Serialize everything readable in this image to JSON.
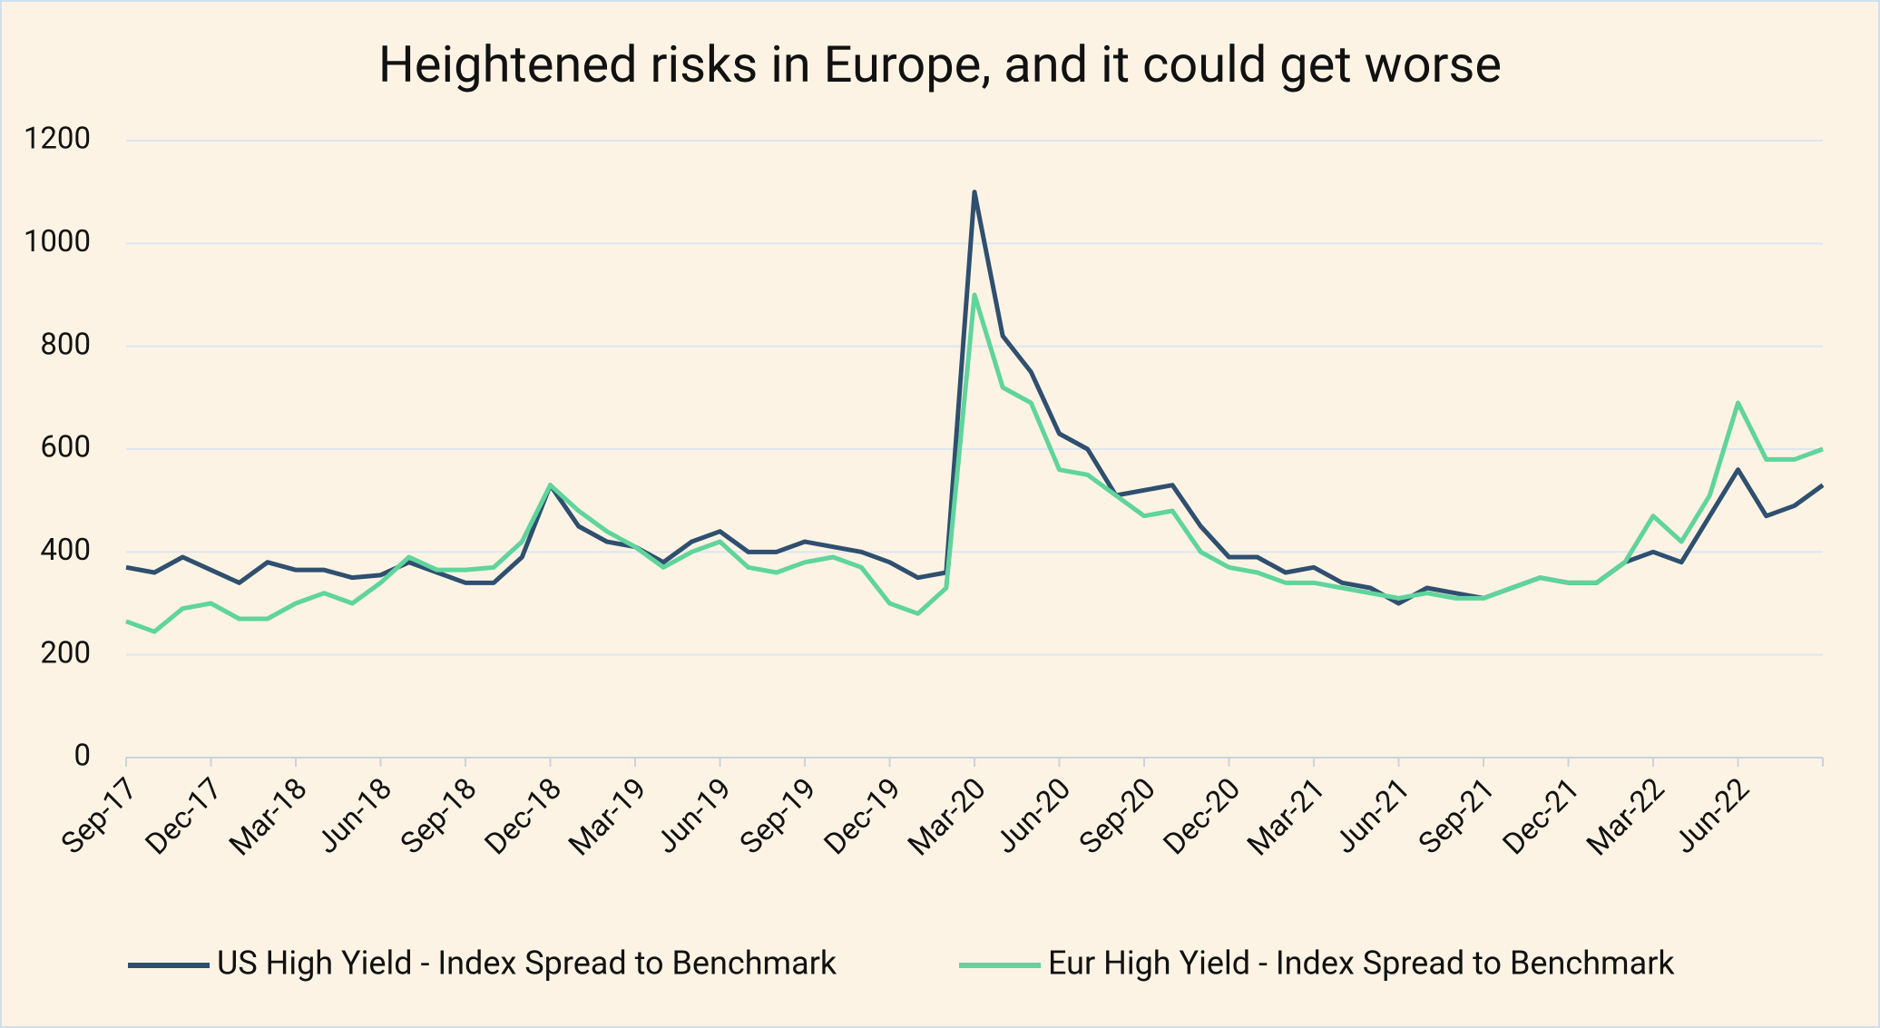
{
  "chart_data": {
    "type": "line",
    "title": "Heightened risks in Europe, and it could get worse",
    "categories": [
      "Sep-17",
      null,
      null,
      "Dec-17",
      null,
      null,
      "Mar-18",
      null,
      null,
      "Jun-18",
      null,
      null,
      "Sep-18",
      null,
      null,
      "Dec-18",
      null,
      null,
      "Mar-19",
      null,
      null,
      "Jun-19",
      null,
      null,
      "Sep-19",
      null,
      null,
      "Dec-19",
      null,
      null,
      "Mar-20",
      null,
      null,
      "Jun-20",
      null,
      null,
      "Sep-20",
      null,
      null,
      "Dec-20",
      null,
      null,
      "Mar-21",
      null,
      null,
      "Jun-21",
      null,
      null,
      "Sep-21",
      null,
      null,
      "Dec-21",
      null,
      null,
      "Mar-22",
      null,
      null,
      "Jun-22",
      null,
      null,
      null
    ],
    "series": [
      {
        "name": "US High Yield - Index Spread to Benchmark",
        "color": "#2f4f6f",
        "values": [
          370,
          360,
          390,
          365,
          340,
          380,
          365,
          365,
          350,
          355,
          380,
          360,
          340,
          340,
          390,
          530,
          450,
          420,
          410,
          380,
          420,
          440,
          400,
          400,
          420,
          410,
          400,
          380,
          350,
          360,
          1100,
          820,
          750,
          630,
          600,
          510,
          520,
          530,
          450,
          390,
          390,
          360,
          370,
          340,
          330,
          300,
          330,
          320,
          310,
          330,
          350,
          340,
          340,
          380,
          400,
          380,
          470,
          560,
          470,
          490,
          530
        ]
      },
      {
        "name": "Eur High Yield - Index Spread to Benchmark",
        "color": "#5fd49c",
        "values": [
          265,
          245,
          290,
          300,
          270,
          270,
          300,
          320,
          300,
          340,
          390,
          365,
          365,
          370,
          420,
          530,
          480,
          440,
          410,
          370,
          400,
          420,
          370,
          360,
          380,
          390,
          370,
          300,
          280,
          330,
          900,
          720,
          690,
          560,
          550,
          510,
          470,
          480,
          400,
          370,
          360,
          340,
          340,
          330,
          320,
          310,
          320,
          310,
          310,
          330,
          350,
          340,
          340,
          380,
          470,
          420,
          510,
          690,
          580,
          580,
          600
        ]
      }
    ],
    "ylim": [
      0,
      1200
    ],
    "yticks": [
      0,
      200,
      400,
      600,
      800,
      1000,
      1200
    ],
    "grid": true,
    "legend": "bottom"
  }
}
